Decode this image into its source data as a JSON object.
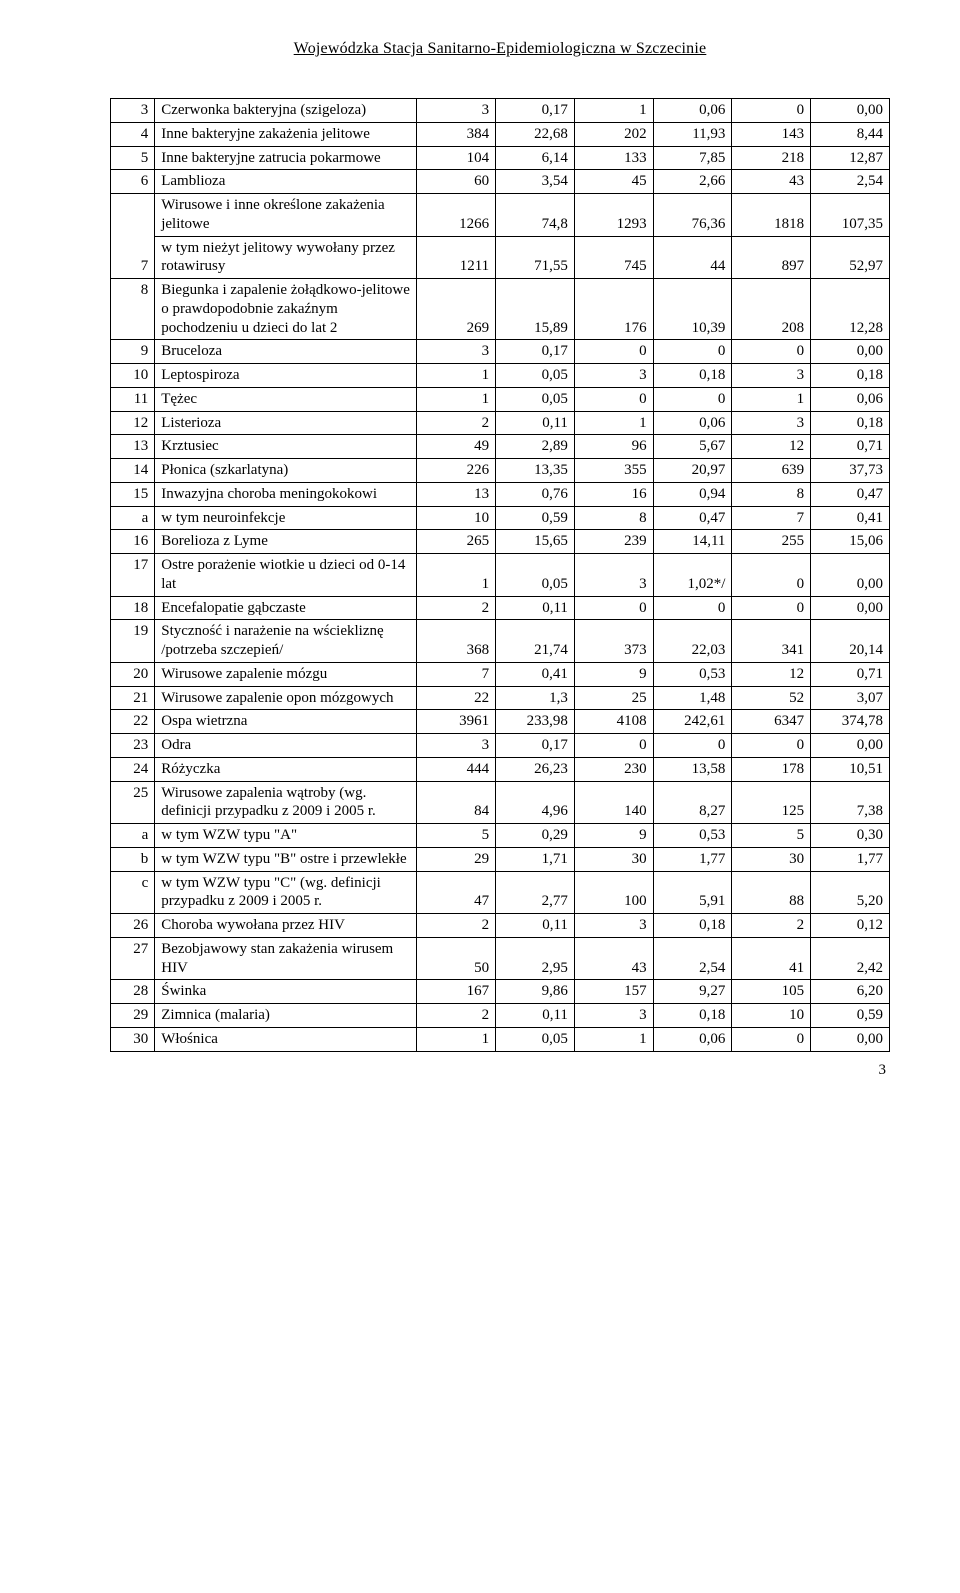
{
  "header": "Wojewódzka Stacja Sanitarno-Epidemiologiczna w Szczecinie",
  "page_number": "3",
  "table": {
    "col_widths": [
      "28px",
      "230px",
      "60px",
      "60px",
      "60px",
      "60px",
      "60px",
      "60px"
    ],
    "rows": [
      {
        "idx": "3",
        "name": "Czerwonka bakteryjna (szigeloza)",
        "c": [
          "3",
          "0,17",
          "1",
          "0,06",
          "0",
          "0,00"
        ]
      },
      {
        "idx": "4",
        "name": "Inne bakteryjne zakażenia jelitowe",
        "c": [
          "384",
          "22,68",
          "202",
          "11,93",
          "143",
          "8,44"
        ]
      },
      {
        "idx": "5",
        "name": "Inne bakteryjne zatrucia pokarmowe",
        "c": [
          "104",
          "6,14",
          "133",
          "7,85",
          "218",
          "12,87"
        ]
      },
      {
        "idx": "6",
        "name": "Lamblioza",
        "c": [
          "60",
          "3,54",
          "45",
          "2,66",
          "43",
          "2,54"
        ]
      },
      {
        "idx": "",
        "name": "Wirusowe i inne określone zakażenia jelitowe",
        "c": [
          "1266",
          "74,8",
          "1293",
          "76,36",
          "1818",
          "107,35"
        ]
      },
      {
        "idx": "7",
        "name": "w tym  nieżyt jelitowy wywołany przez rotawirusy",
        "c": [
          "1211",
          "71,55",
          "745",
          "44",
          "897",
          "52,97"
        ]
      },
      {
        "idx": "8",
        "name": "Biegunka i zapalenie żołądkowo-jelitowe o prawdopodobnie zakaźnym pochodzeniu u dzieci do lat 2",
        "c": [
          "269",
          "15,89",
          "176",
          "10,39",
          "208",
          "12,28"
        ]
      },
      {
        "idx": "9",
        "name": "Bruceloza",
        "c": [
          "3",
          "0,17",
          "0",
          "0",
          "0",
          "0,00"
        ]
      },
      {
        "idx": "10",
        "name": "Leptospiroza",
        "c": [
          "1",
          "0,05",
          "3",
          "0,18",
          "3",
          "0,18"
        ]
      },
      {
        "idx": "11",
        "name": "Tężec",
        "c": [
          "1",
          "0,05",
          "0",
          "0",
          "1",
          "0,06"
        ]
      },
      {
        "idx": "12",
        "name": "Listerioza",
        "c": [
          "2",
          "0,11",
          "1",
          "0,06",
          "3",
          "0,18"
        ]
      },
      {
        "idx": "13",
        "name": "Krztusiec",
        "c": [
          "49",
          "2,89",
          "96",
          "5,67",
          "12",
          "0,71"
        ]
      },
      {
        "idx": "14",
        "name": "Płonica (szkarlatyna)",
        "c": [
          "226",
          "13,35",
          "355",
          "20,97",
          "639",
          "37,73"
        ]
      },
      {
        "idx": "15",
        "name": "Inwazyjna choroba meningokokowi",
        "c": [
          "13",
          "0,76",
          "16",
          "0,94",
          "8",
          "0,47"
        ]
      },
      {
        "idx": "a",
        "name": "w tym neuroinfekcje",
        "c": [
          "10",
          "0,59",
          "8",
          "0,47",
          "7",
          "0,41"
        ]
      },
      {
        "idx": "16",
        "name": "Borelioza z Lyme",
        "c": [
          "265",
          "15,65",
          "239",
          "14,11",
          "255",
          "15,06"
        ]
      },
      {
        "idx": "17",
        "name": "Ostre porażenie wiotkie u dzieci od 0-14 lat",
        "c": [
          "1",
          "0,05",
          "3",
          "1,02*/",
          "0",
          "0,00"
        ]
      },
      {
        "idx": "18",
        "name": "Encefalopatie gąbczaste",
        "c": [
          "2",
          "0,11",
          "0",
          "0",
          "0",
          "0,00"
        ]
      },
      {
        "idx": "19",
        "name": "Styczność i narażenie na wściekliznę /potrzeba szczepień/",
        "c": [
          "368",
          "21,74",
          "373",
          "22,03",
          "341",
          "20,14"
        ]
      },
      {
        "idx": "20",
        "name": "Wirusowe zapalenie mózgu",
        "c": [
          "7",
          "0,41",
          "9",
          "0,53",
          "12",
          "0,71"
        ]
      },
      {
        "idx": "21",
        "name": "Wirusowe zapalenie opon mózgowych",
        "c": [
          "22",
          "1,3",
          "25",
          "1,48",
          "52",
          "3,07"
        ]
      },
      {
        "idx": "22",
        "name": "Ospa wietrzna",
        "c": [
          "3961",
          "233,98",
          "4108",
          "242,61",
          "6347",
          "374,78"
        ]
      },
      {
        "idx": "23",
        "name": "Odra",
        "c": [
          "3",
          "0,17",
          "0",
          "0",
          "0",
          "0,00"
        ]
      },
      {
        "idx": "24",
        "name": "Różyczka",
        "c": [
          "444",
          "26,23",
          "230",
          "13,58",
          "178",
          "10,51"
        ]
      },
      {
        "idx": "25",
        "name": "Wirusowe zapalenia wątroby (wg. definicji przypadku z 2009 i 2005 r.",
        "c": [
          "84",
          "4,96",
          "140",
          "8,27",
          "125",
          "7,38"
        ]
      },
      {
        "idx": "a",
        "name": "w tym WZW typu \"A\"",
        "c": [
          "5",
          "0,29",
          "9",
          "0,53",
          "5",
          "0,30"
        ]
      },
      {
        "idx": "b",
        "name": "w tym WZW typu \"B\" ostre i przewlekłe",
        "c": [
          "29",
          "1,71",
          "30",
          "1,77",
          "30",
          "1,77"
        ]
      },
      {
        "idx": "c",
        "name": "w tym WZW typu \"C\" (wg. definicji przypadku z 2009 i 2005 r.",
        "c": [
          "47",
          "2,77",
          "100",
          "5,91",
          "88",
          "5,20"
        ]
      },
      {
        "idx": "26",
        "name": "Choroba wywołana przez HIV",
        "c": [
          "2",
          "0,11",
          "3",
          "0,18",
          "2",
          "0,12"
        ]
      },
      {
        "idx": "27",
        "name": "Bezobjawowy stan zakażenia wirusem HIV",
        "c": [
          "50",
          "2,95",
          "43",
          "2,54",
          "41",
          "2,42"
        ]
      },
      {
        "idx": "28",
        "name": "Świnka",
        "c": [
          "167",
          "9,86",
          "157",
          "9,27",
          "105",
          "6,20"
        ]
      },
      {
        "idx": "29",
        "name": "Zimnica (malaria)",
        "c": [
          "2",
          "0,11",
          "3",
          "0,18",
          "10",
          "0,59"
        ]
      },
      {
        "idx": "30",
        "name": "Włośnica",
        "c": [
          "1",
          "0,05",
          "1",
          "0,06",
          "0",
          "0,00"
        ]
      }
    ],
    "merged_rows": {
      "4": {
        "merge_with_next_idx": true
      }
    }
  }
}
